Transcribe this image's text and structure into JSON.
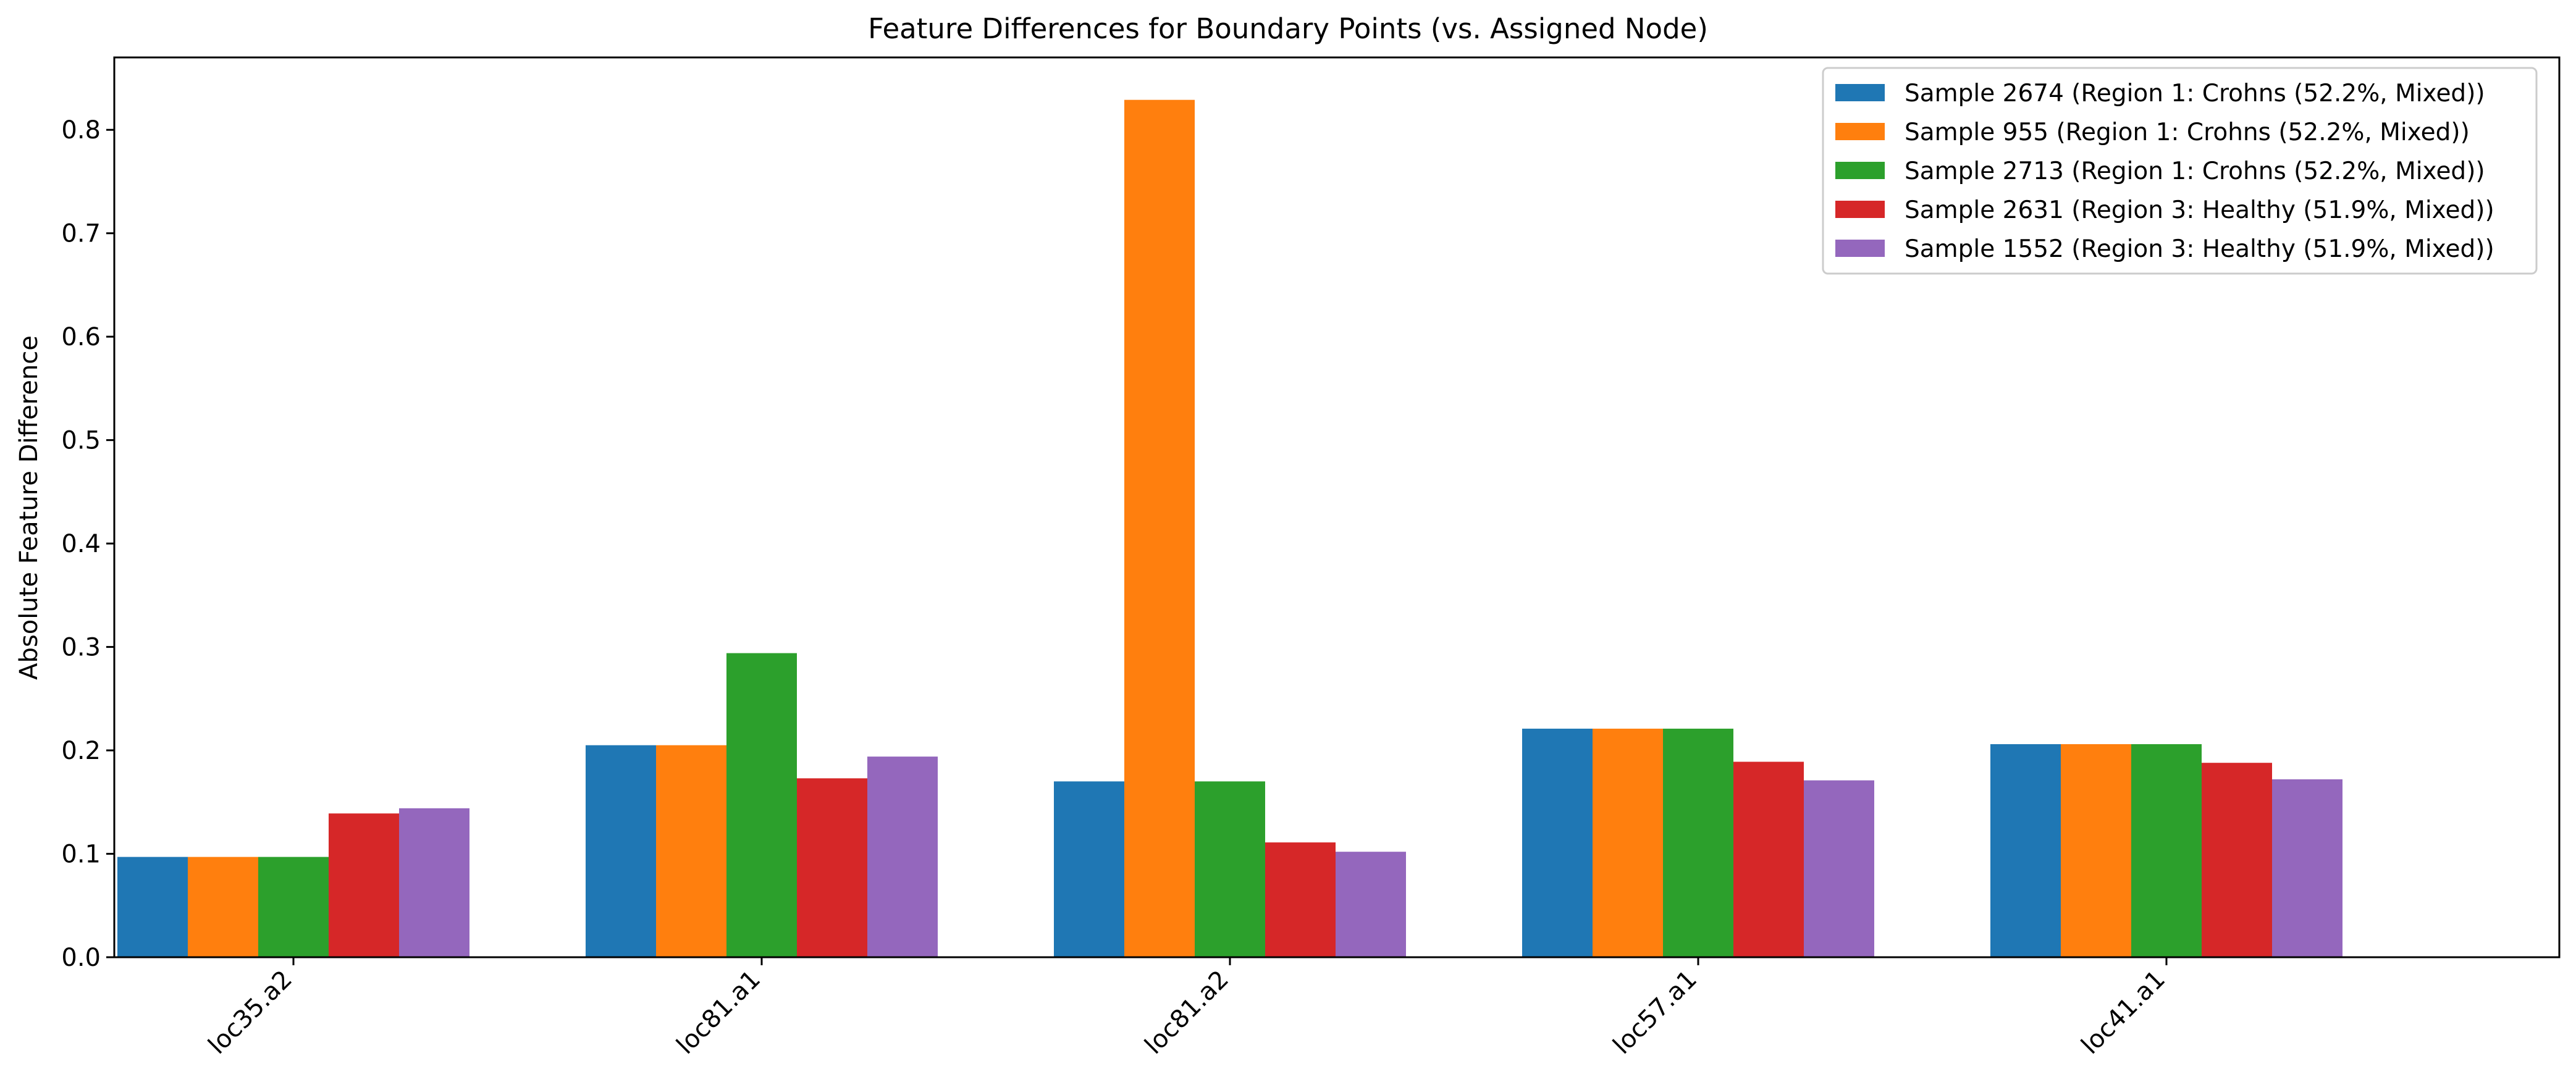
{
  "chart_data": {
    "type": "bar",
    "title": "Feature Differences for Boundary Points (vs. Assigned Node)",
    "xlabel": "",
    "ylabel": "Absolute Feature Difference",
    "ylim": [
      0,
      0.87
    ],
    "yticks": [
      "0.0",
      "0.1",
      "0.2",
      "0.3",
      "0.4",
      "0.5",
      "0.6",
      "0.7",
      "0.8"
    ],
    "grid": false,
    "legend_position": "top-right",
    "categories": [
      "loc35.a2",
      "loc81.a1",
      "loc81.a2",
      "loc57.a1",
      "loc41.a1"
    ],
    "series": [
      {
        "name": "Sample 2674 (Region 1: Crohns (52.2%, Mixed))",
        "color": "#1f77b4",
        "values": [
          0.097,
          0.205,
          0.17,
          0.221,
          0.206
        ]
      },
      {
        "name": "Sample 955 (Region 1: Crohns (52.2%, Mixed))",
        "color": "#ff7f0e",
        "values": [
          0.097,
          0.205,
          0.829,
          0.221,
          0.206
        ]
      },
      {
        "name": "Sample 2713 (Region 1: Crohns (52.2%, Mixed))",
        "color": "#2ca02c",
        "values": [
          0.097,
          0.294,
          0.17,
          0.221,
          0.206
        ]
      },
      {
        "name": "Sample 2631 (Region 3: Healthy (51.9%, Mixed))",
        "color": "#d62728",
        "values": [
          0.139,
          0.173,
          0.111,
          0.189,
          0.188
        ]
      },
      {
        "name": "Sample 1552 (Region 3: Healthy (51.9%, Mixed))",
        "color": "#9467bd",
        "values": [
          0.144,
          0.194,
          0.102,
          0.171,
          0.172
        ]
      }
    ]
  }
}
